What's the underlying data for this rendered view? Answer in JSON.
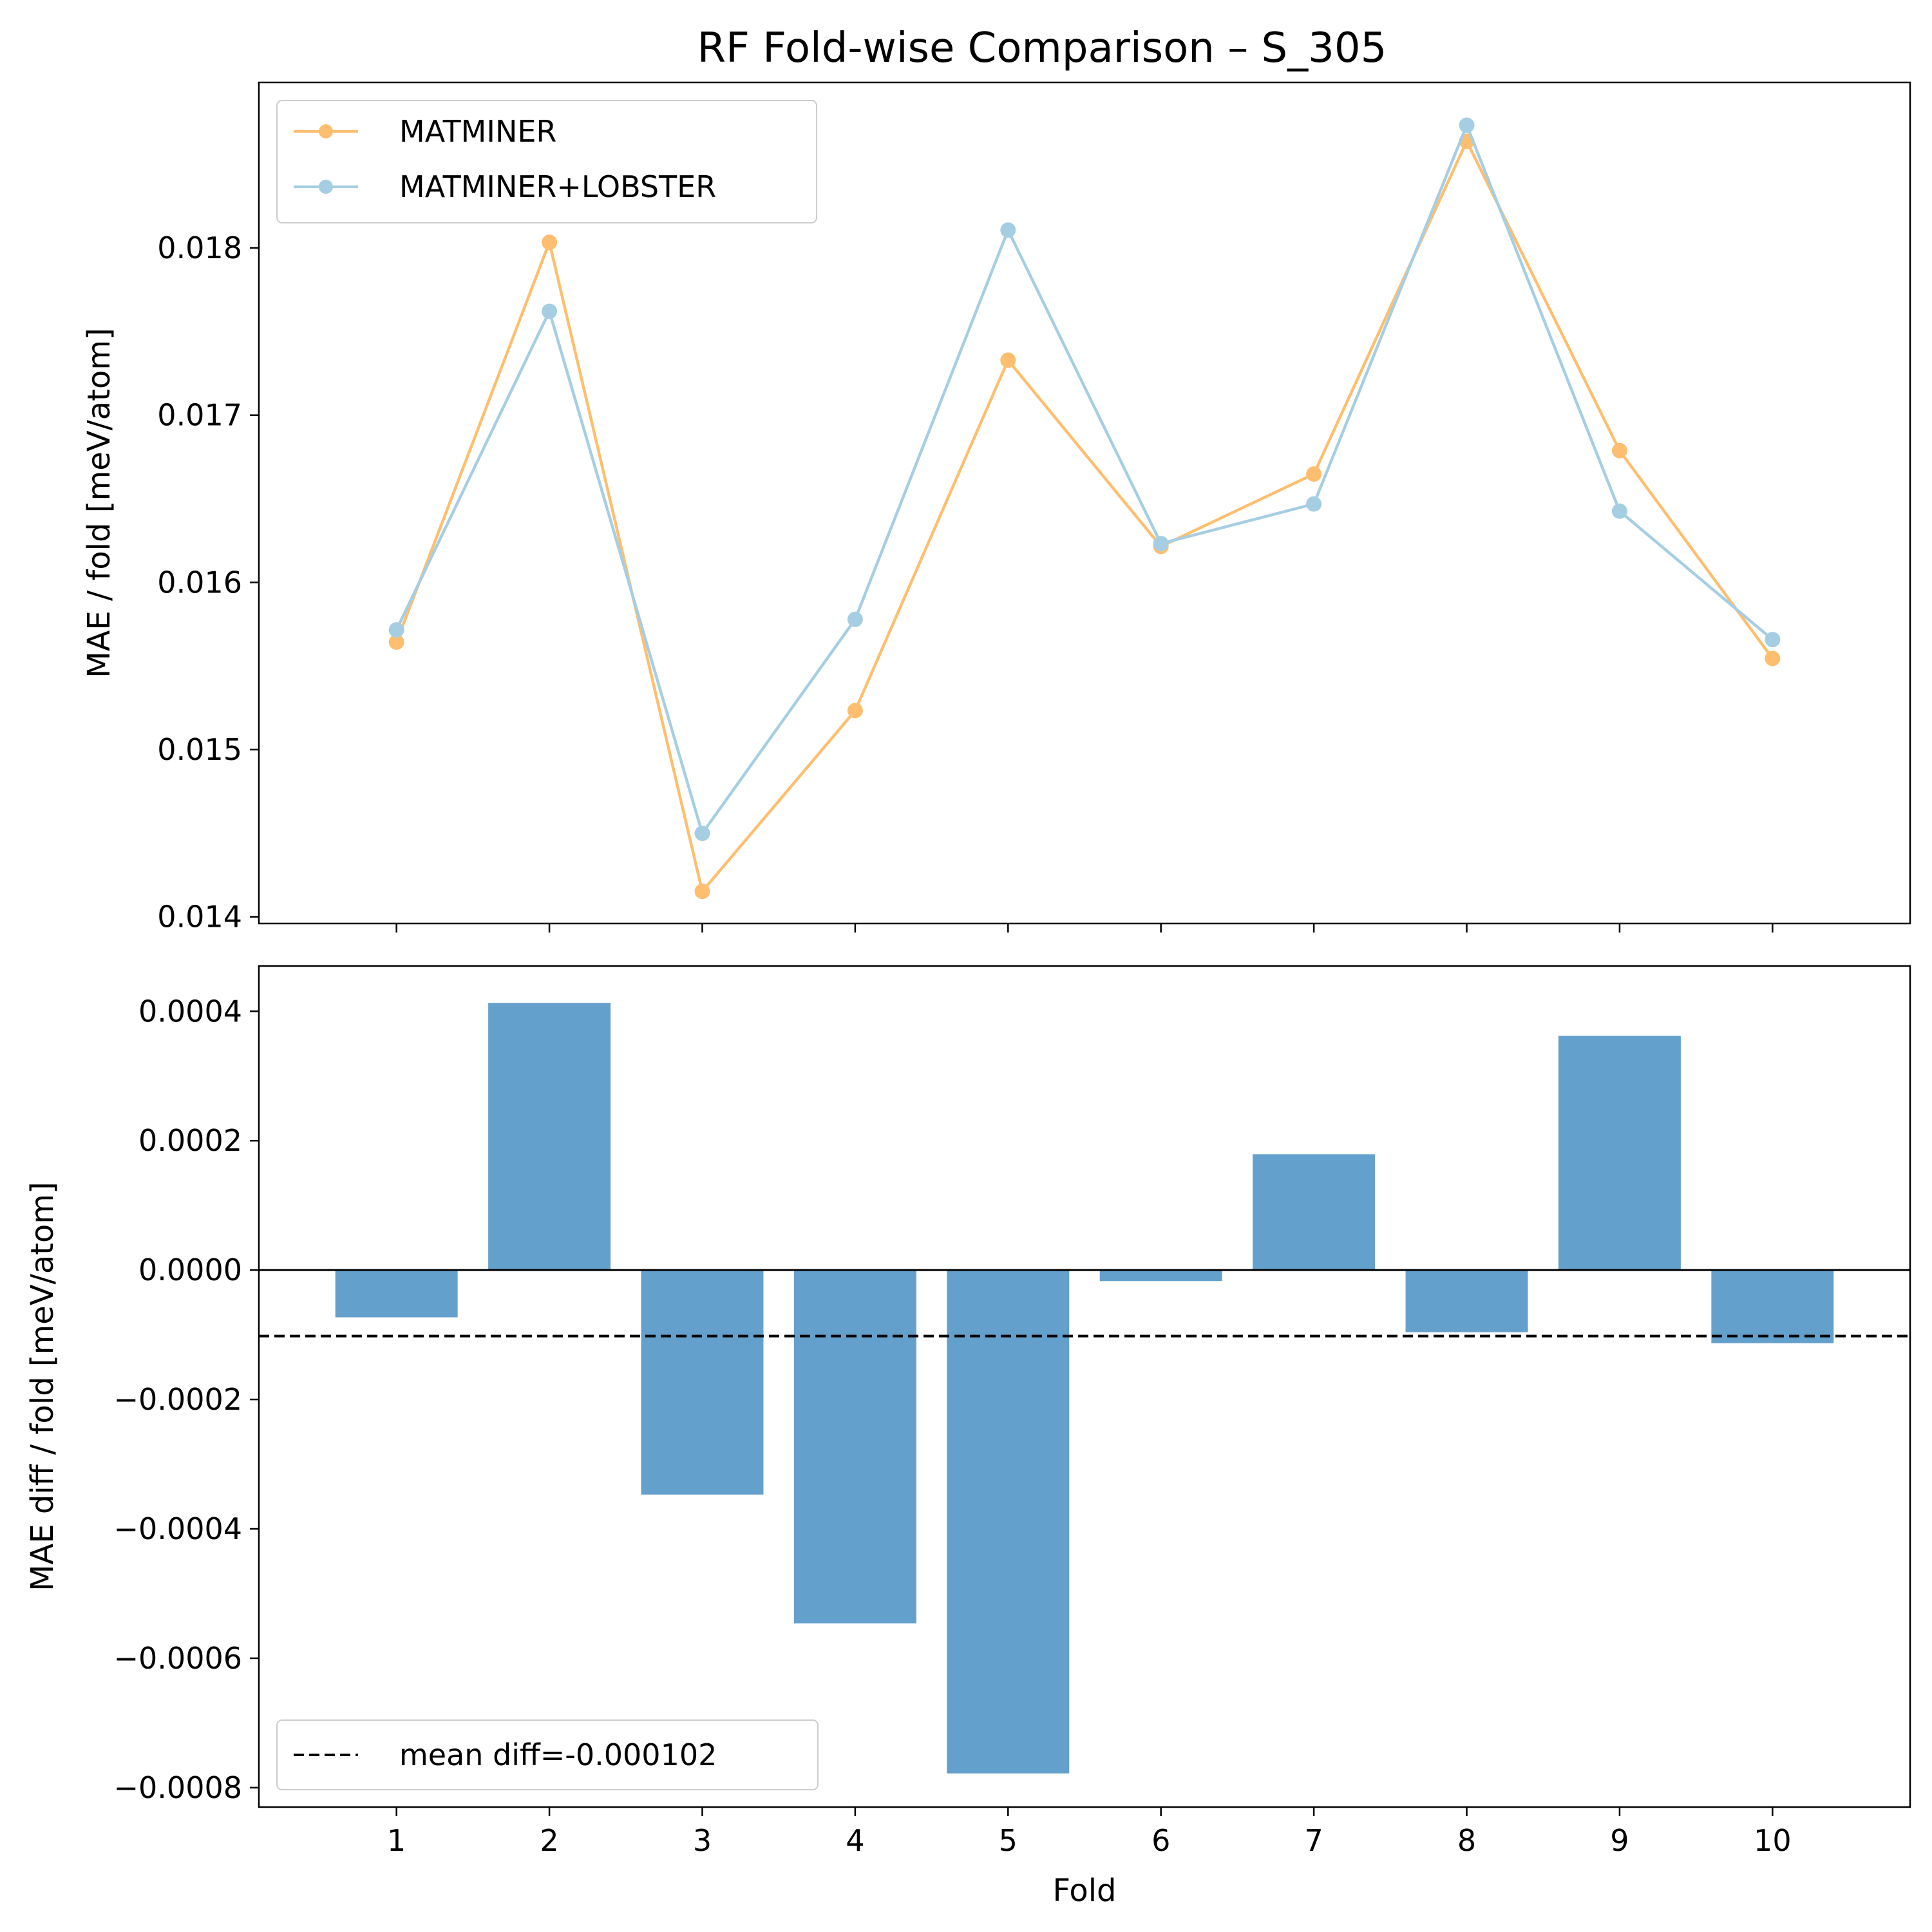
{
  "title": "RF Fold-wise Comparison – S_305",
  "colors": {
    "matminer": "#fdbf6f",
    "matminer_lobster": "#a6cee3",
    "bar": "#4a90c4",
    "mean_line": "#000000"
  },
  "chart_data": [
    {
      "type": "line",
      "xlabel": "",
      "ylabel": "MAE / fold [meV/atom]",
      "x": [
        1,
        2,
        3,
        4,
        5,
        6,
        7,
        8,
        9,
        10
      ],
      "xlim": [
        0.1,
        10.9
      ],
      "ylim": [
        0.01396,
        0.01899
      ],
      "yticks": [
        0.014,
        0.015,
        0.016,
        0.017,
        0.018
      ],
      "ytick_labels": [
        "0.014",
        "0.015",
        "0.016",
        "0.017",
        "0.018"
      ],
      "legend_position": "top-left",
      "series": [
        {
          "name": "MATMINER",
          "color_key": "matminer",
          "values": [
            0.015643,
            0.018034,
            0.014152,
            0.015233,
            0.017329,
            0.016215,
            0.016648,
            0.018638,
            0.016788,
            0.015545
          ]
        },
        {
          "name": "MATMINER+LOBSTER",
          "color_key": "matminer_lobster",
          "values": [
            0.015716,
            0.017621,
            0.014499,
            0.015779,
            0.018107,
            0.016232,
            0.016469,
            0.018734,
            0.016426,
            0.015658
          ]
        }
      ]
    },
    {
      "type": "bar",
      "xlabel": "Fold",
      "ylabel": "MAE diff / fold [meV/atom]",
      "categories": [
        "1",
        "2",
        "3",
        "4",
        "5",
        "6",
        "7",
        "8",
        "9",
        "10"
      ],
      "values": [
        -7.3e-05,
        0.000413,
        -0.000347,
        -0.000546,
        -0.000778,
        -1.7e-05,
        0.000179,
        -9.6e-05,
        0.000362,
        -0.000113
      ],
      "xlim": [
        0.1,
        10.9
      ],
      "ylim": [
        -0.00083,
        0.00047
      ],
      "yticks": [
        -0.0008,
        -0.0006,
        -0.0004,
        -0.0002,
        0.0,
        0.0002,
        0.0004
      ],
      "ytick_labels": [
        "−0.0008",
        "−0.0006",
        "−0.0004",
        "−0.0002",
        "0.0000",
        "0.0002",
        "0.0004"
      ],
      "mean_diff": -0.000102,
      "legend_label": "mean diff=-0.000102",
      "legend_position": "bottom-left"
    }
  ]
}
